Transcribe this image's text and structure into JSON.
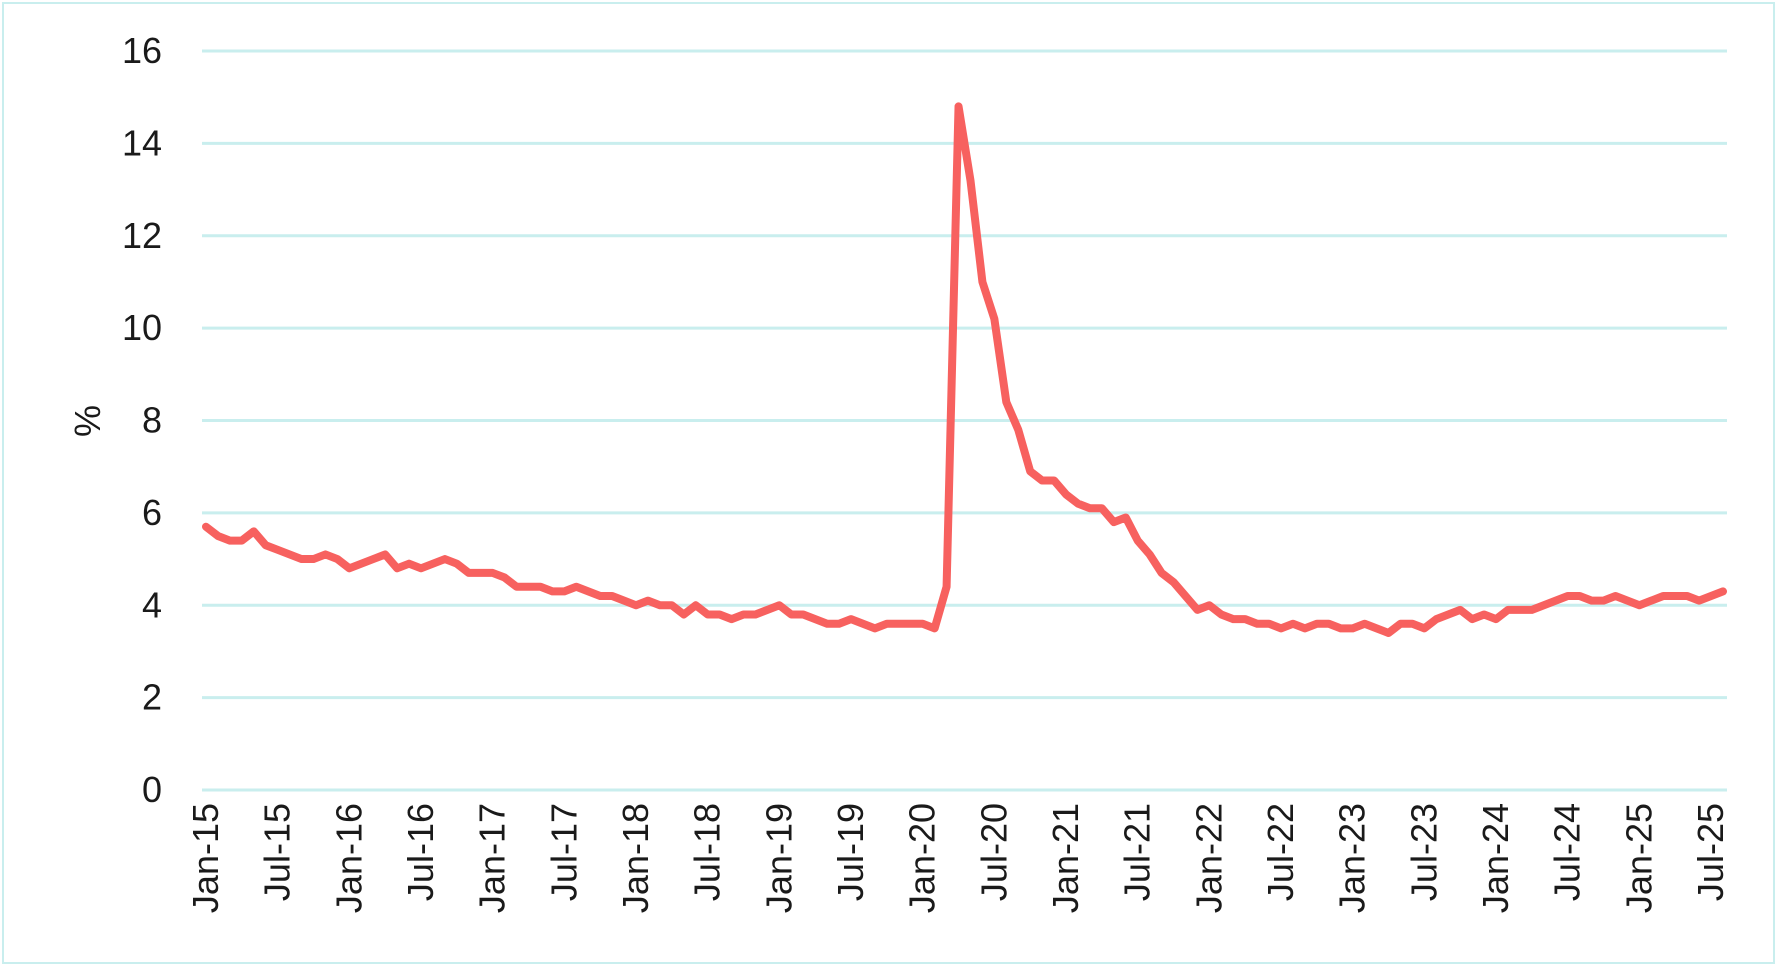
{
  "chart_data": {
    "type": "line",
    "title": "",
    "xlabel": "",
    "ylabel": "%",
    "ylim": [
      0,
      16
    ],
    "yticks": [
      "0",
      "2",
      "4",
      "6",
      "8",
      "10",
      "12",
      "14",
      "16"
    ],
    "xticks": [
      "Jan-15",
      "Jul-15",
      "Jan-16",
      "Jul-16",
      "Jan-17",
      "Jul-17",
      "Jan-18",
      "Jul-18",
      "Jan-19",
      "Jul-19",
      "Jan-20",
      "Jul-20",
      "Jan-21",
      "Jul-21",
      "Jan-22",
      "Jul-22",
      "Jan-23",
      "Jul-23",
      "Jan-24",
      "Jul-24",
      "Jan-25",
      "Jul-25"
    ],
    "grid": true,
    "legend": "none",
    "colors": {
      "line": "#f7615f",
      "grid": "#c9eeee",
      "frame": "#c9eeee"
    },
    "x_start": "Jan-15",
    "x_end": "Aug-25",
    "frequency": "monthly",
    "values": [
      5.7,
      5.5,
      5.4,
      5.4,
      5.6,
      5.3,
      5.2,
      5.1,
      5.0,
      5.0,
      5.1,
      5.0,
      4.8,
      4.9,
      5.0,
      5.1,
      4.8,
      4.9,
      4.8,
      4.9,
      5.0,
      4.9,
      4.7,
      4.7,
      4.7,
      4.6,
      4.4,
      4.4,
      4.4,
      4.3,
      4.3,
      4.4,
      4.3,
      4.2,
      4.2,
      4.1,
      4.0,
      4.1,
      4.0,
      4.0,
      3.8,
      4.0,
      3.8,
      3.8,
      3.7,
      3.8,
      3.8,
      3.9,
      4.0,
      3.8,
      3.8,
      3.7,
      3.6,
      3.6,
      3.7,
      3.6,
      3.5,
      3.6,
      3.6,
      3.6,
      3.6,
      3.5,
      4.4,
      14.8,
      13.2,
      11.0,
      10.2,
      8.4,
      7.8,
      6.9,
      6.7,
      6.7,
      6.4,
      6.2,
      6.1,
      6.1,
      5.8,
      5.9,
      5.4,
      5.1,
      4.7,
      4.5,
      4.2,
      3.9,
      4.0,
      3.8,
      3.7,
      3.7,
      3.6,
      3.6,
      3.5,
      3.6,
      3.5,
      3.6,
      3.6,
      3.5,
      3.5,
      3.6,
      3.5,
      3.4,
      3.6,
      3.6,
      3.5,
      3.7,
      3.8,
      3.9,
      3.7,
      3.8,
      3.7,
      3.9,
      3.9,
      3.9,
      4.0,
      4.1,
      4.2,
      4.2,
      4.1,
      4.1,
      4.2,
      4.1,
      4.0,
      4.1,
      4.2,
      4.2,
      4.2,
      4.1,
      4.2,
      4.3
    ]
  }
}
